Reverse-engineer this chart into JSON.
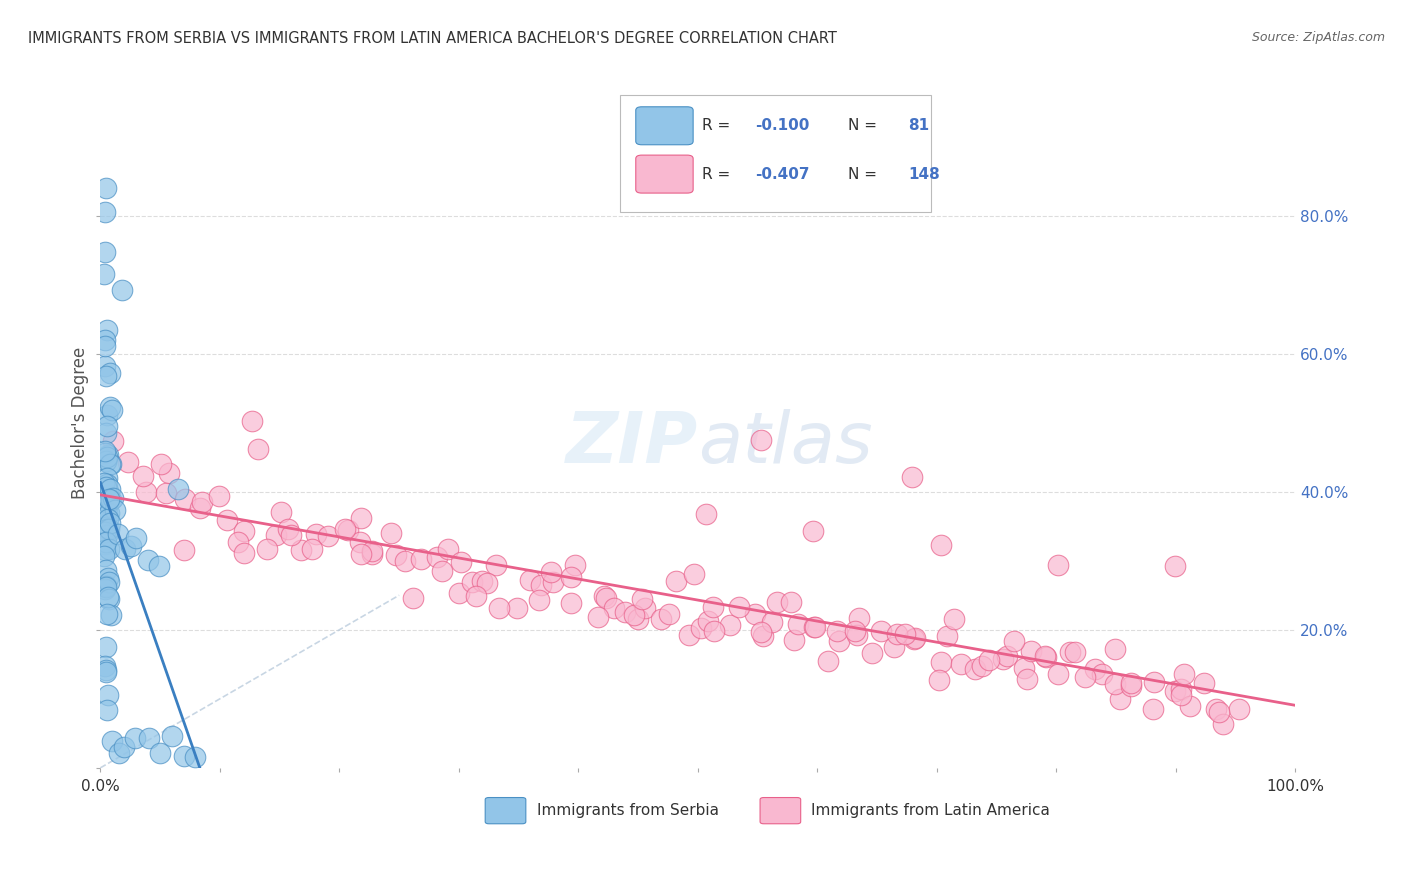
{
  "title": "IMMIGRANTS FROM SERBIA VS IMMIGRANTS FROM LATIN AMERICA BACHELOR'S DEGREE CORRELATION CHART",
  "source": "Source: ZipAtlas.com",
  "ylabel": "Bachelor's Degree",
  "serbia_R": -0.1,
  "serbia_N": 81,
  "latin_R": -0.407,
  "latin_N": 148,
  "serbia_color": "#92c5e8",
  "latin_color": "#f9b8d0",
  "serbia_edge_color": "#4a90c4",
  "latin_edge_color": "#e8608a",
  "serbia_line_color": "#3a7fc1",
  "latin_line_color": "#e8608a",
  "diagonal_color": "#bbccdd",
  "background_color": "#ffffff",
  "grid_color": "#dddddd",
  "right_ytick_color": "#4472c4",
  "watermark_color": "#d0e4f5",
  "xmin": 0.0,
  "xmax": 100.0,
  "ymin": 0.0,
  "ymax": 100.0,
  "serbia_x": [
    0.5,
    0.3,
    1.8,
    0.4,
    0.6,
    0.3,
    0.5,
    0.4,
    0.7,
    0.5,
    0.6,
    0.8,
    0.9,
    0.5,
    0.6,
    0.7,
    0.8,
    0.3,
    0.4,
    0.5,
    0.6,
    0.7,
    0.4,
    0.5,
    0.6,
    0.3,
    0.4,
    0.5,
    0.6,
    0.7,
    0.8,
    0.9,
    1.0,
    1.1,
    1.2,
    0.5,
    0.6,
    0.7,
    0.4,
    0.5,
    0.6,
    0.5,
    0.7,
    0.8,
    0.4,
    0.5,
    0.6,
    0.3,
    0.4,
    0.5,
    0.5,
    0.4,
    0.6,
    0.5,
    0.7,
    0.8,
    0.6,
    0.5,
    0.4,
    0.3,
    0.5,
    0.4,
    0.6,
    1.5,
    2.0,
    2.5,
    3.0,
    4.0,
    5.0,
    6.5,
    0.5,
    1.0,
    1.5,
    2.0,
    3.0,
    4.0,
    5.0,
    6.0,
    7.0,
    8.0,
    0.3
  ],
  "serbia_y": [
    85.0,
    78.0,
    68.0,
    72.0,
    65.0,
    63.0,
    60.0,
    58.0,
    57.0,
    55.0,
    53.0,
    52.0,
    50.0,
    49.0,
    48.0,
    47.0,
    46.0,
    45.0,
    45.0,
    44.0,
    43.0,
    43.0,
    42.0,
    42.0,
    41.0,
    41.0,
    40.0,
    40.0,
    39.5,
    39.0,
    38.5,
    38.0,
    38.0,
    37.5,
    37.0,
    37.0,
    36.5,
    36.0,
    35.5,
    35.0,
    34.5,
    34.0,
    33.5,
    33.0,
    32.0,
    31.5,
    31.0,
    30.0,
    29.5,
    29.0,
    28.0,
    27.0,
    26.5,
    25.0,
    24.0,
    23.0,
    22.0,
    20.0,
    18.0,
    16.0,
    14.0,
    12.0,
    10.0,
    33.0,
    32.0,
    31.5,
    31.0,
    30.5,
    29.0,
    40.0,
    8.0,
    6.0,
    5.0,
    4.5,
    4.0,
    3.5,
    3.0,
    2.5,
    2.0,
    1.5,
    75.0
  ],
  "latin_x": [
    1.0,
    2.0,
    3.5,
    4.0,
    5.0,
    6.0,
    7.0,
    8.5,
    9.0,
    10.0,
    11.0,
    12.0,
    13.0,
    14.0,
    15.0,
    16.0,
    17.0,
    18.0,
    19.0,
    20.0,
    21.0,
    22.0,
    23.0,
    24.0,
    25.0,
    26.0,
    27.0,
    28.0,
    29.0,
    30.0,
    31.0,
    32.0,
    33.0,
    34.0,
    35.0,
    36.0,
    37.0,
    38.0,
    39.0,
    40.0,
    41.0,
    42.0,
    43.0,
    44.0,
    45.0,
    46.0,
    47.0,
    48.0,
    49.0,
    50.0,
    51.0,
    52.0,
    53.0,
    54.0,
    55.0,
    56.0,
    57.0,
    58.0,
    59.0,
    60.0,
    61.0,
    62.0,
    63.0,
    64.0,
    65.0,
    66.0,
    67.0,
    68.0,
    69.0,
    70.0,
    71.0,
    72.0,
    73.0,
    74.0,
    75.0,
    76.0,
    77.0,
    78.0,
    79.0,
    80.0,
    81.0,
    82.0,
    83.0,
    84.0,
    85.0,
    86.0,
    87.0,
    88.0,
    89.0,
    90.0,
    91.0,
    92.0,
    93.0,
    94.0,
    95.0,
    5.0,
    7.0,
    10.0,
    12.0,
    14.0,
    16.0,
    18.0,
    20.0,
    22.0,
    24.0,
    26.0,
    28.0,
    30.0,
    32.0,
    34.0,
    36.0,
    38.0,
    40.0,
    42.0,
    44.0,
    46.0,
    48.0,
    50.0,
    52.0,
    54.0,
    56.0,
    58.0,
    60.0,
    62.0,
    64.0,
    66.0,
    68.0,
    70.0,
    72.0,
    74.0,
    76.0,
    78.0,
    80.0,
    82.0,
    84.0,
    86.0,
    88.0,
    90.0,
    92.0,
    94.0,
    13.0,
    55.0,
    68.0,
    50.0,
    60.0,
    70.0,
    80.0,
    90.0
  ],
  "latin_y": [
    45.0,
    43.0,
    42.0,
    41.0,
    40.0,
    40.0,
    39.5,
    39.0,
    38.5,
    38.0,
    37.5,
    37.0,
    47.0,
    36.5,
    36.0,
    35.5,
    35.0,
    34.5,
    34.0,
    33.5,
    33.0,
    32.5,
    32.0,
    31.5,
    31.0,
    30.5,
    30.0,
    29.5,
    29.0,
    28.5,
    28.0,
    28.0,
    27.5,
    27.5,
    27.0,
    27.0,
    26.5,
    26.5,
    26.0,
    26.0,
    25.5,
    25.0,
    25.0,
    24.5,
    24.0,
    24.0,
    23.5,
    23.0,
    23.0,
    22.5,
    22.0,
    22.0,
    21.5,
    21.0,
    21.0,
    21.0,
    20.5,
    20.5,
    20.0,
    20.0,
    20.0,
    19.5,
    19.5,
    19.0,
    19.0,
    18.5,
    18.5,
    18.0,
    18.0,
    17.5,
    17.5,
    17.0,
    17.0,
    16.5,
    16.5,
    16.0,
    16.0,
    15.5,
    15.5,
    15.0,
    15.0,
    14.5,
    14.5,
    14.0,
    13.5,
    13.0,
    12.5,
    12.0,
    11.5,
    11.0,
    10.5,
    10.0,
    9.5,
    9.0,
    8.5,
    42.0,
    35.0,
    34.0,
    31.0,
    30.0,
    33.0,
    31.0,
    35.0,
    30.0,
    32.0,
    28.0,
    27.0,
    30.0,
    26.0,
    28.0,
    27.0,
    25.0,
    29.0,
    24.0,
    23.0,
    26.0,
    22.0,
    25.0,
    21.0,
    23.0,
    22.0,
    21.0,
    20.0,
    22.0,
    18.0,
    17.0,
    19.0,
    16.0,
    18.0,
    15.0,
    16.0,
    14.0,
    17.0,
    13.0,
    15.0,
    12.0,
    11.0,
    10.0,
    9.0,
    8.0,
    50.0,
    50.0,
    45.0,
    38.0,
    35.0,
    32.0,
    29.0,
    26.0
  ]
}
